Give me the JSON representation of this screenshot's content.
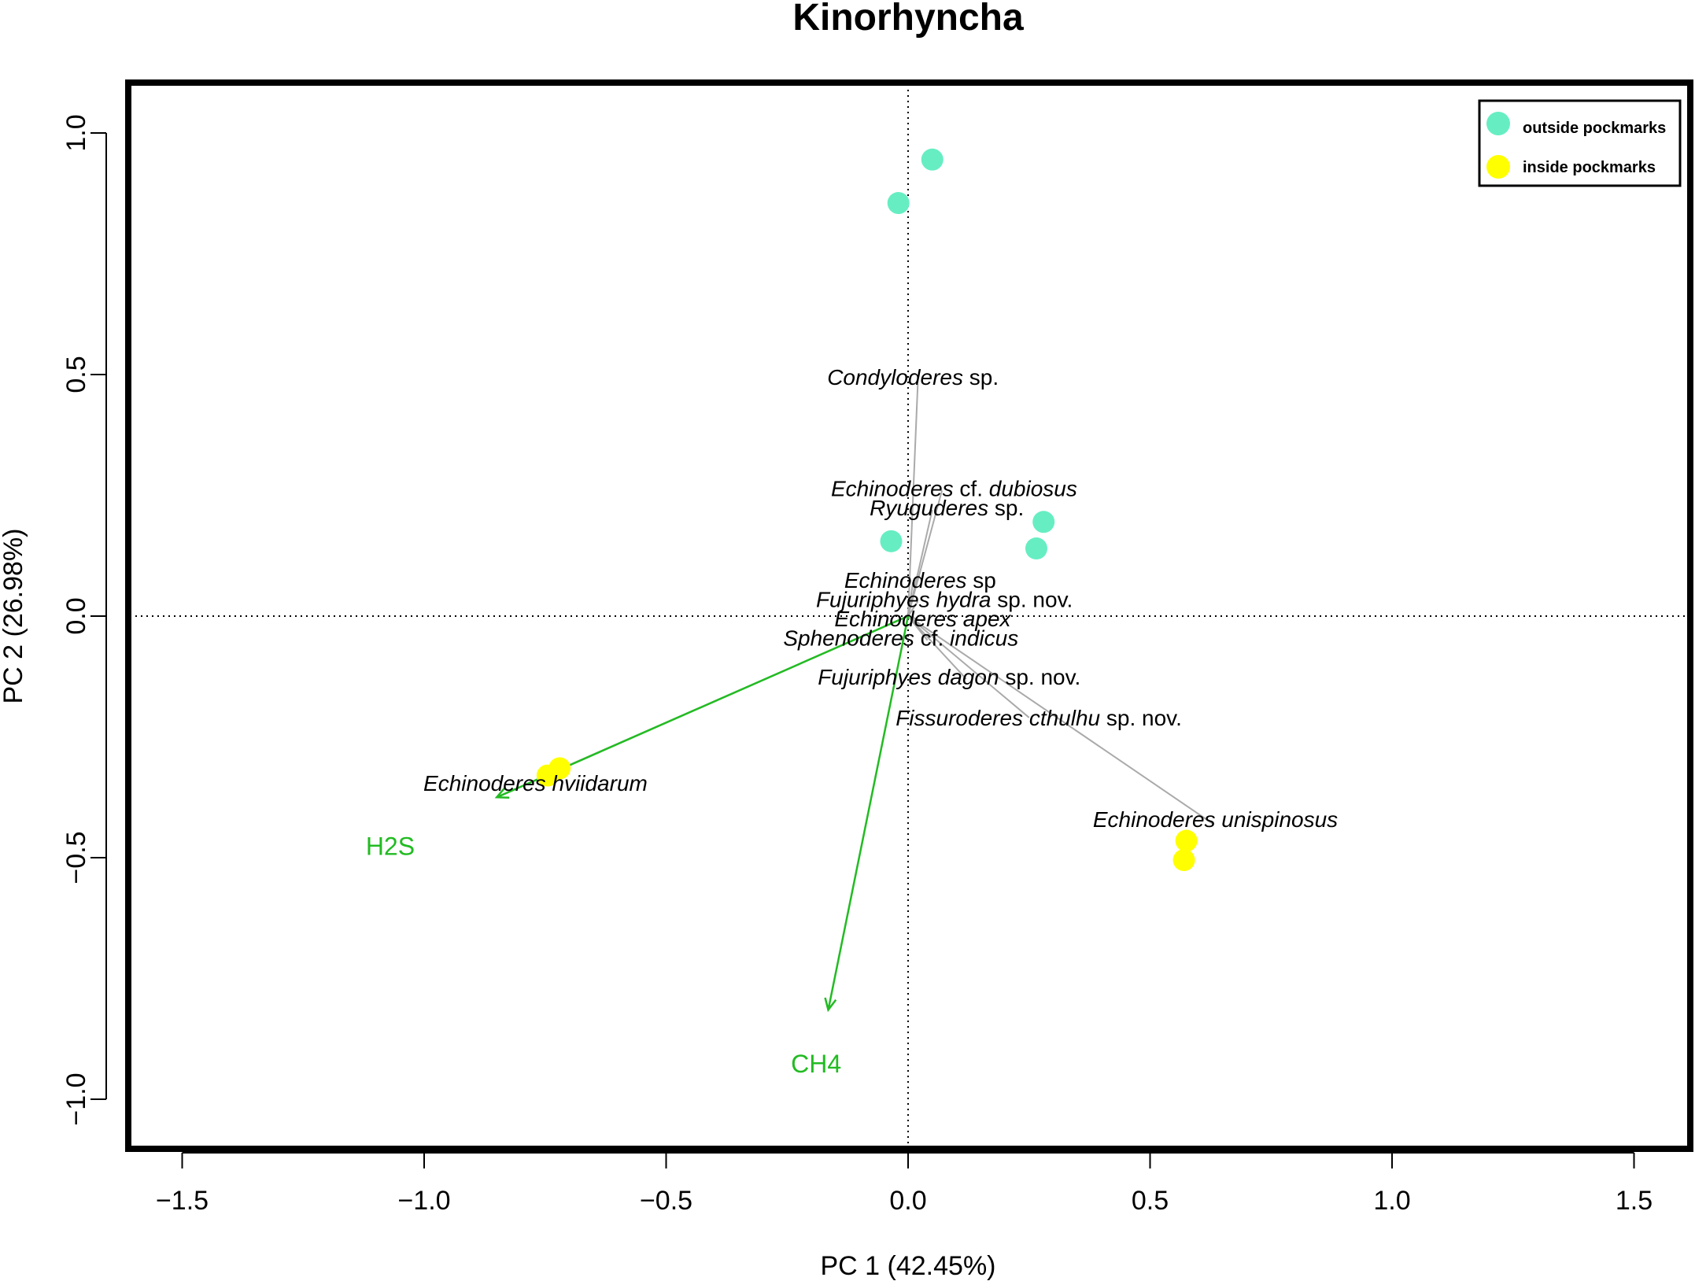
{
  "chart_data": {
    "type": "scatter",
    "title": "Kinorhyncha",
    "xlabel": "PC 1 (42.45%)",
    "ylabel": "PC 2 (26.98%)",
    "xlim": [
      -1.6,
      1.62
    ],
    "ylim": [
      -1.1,
      1.1
    ],
    "xticks": [
      -1.5,
      -1.0,
      -0.5,
      0.0,
      0.5,
      1.0,
      1.5
    ],
    "xtick_labels": [
      "−1.5",
      "−1.0",
      "−0.5",
      "0.0",
      "0.5",
      "1.0",
      "1.5"
    ],
    "yticks": [
      1.0,
      0.5,
      0.0,
      -0.5,
      -1.0
    ],
    "ytick_labels": [
      "1.0",
      "0.5",
      "0.0",
      "−0.5",
      "−1.0"
    ],
    "grid": false,
    "reference_lines": {
      "x": 0,
      "y": 0,
      "style": "dotted"
    },
    "legend": {
      "position": "top-right",
      "entries": [
        {
          "label": "outside pockmarks",
          "color": "#66EEC2"
        },
        {
          "label": "inside pockmarks",
          "color": "#FFFF00"
        }
      ]
    },
    "series": [
      {
        "name": "outside pockmarks",
        "color": "#66EEC2",
        "points": [
          [
            0.05,
            0.945
          ],
          [
            -0.02,
            0.855
          ],
          [
            -0.035,
            0.155
          ],
          [
            0.28,
            0.195
          ],
          [
            0.265,
            0.14
          ]
        ]
      },
      {
        "name": "inside pockmarks",
        "color": "#FFFF00",
        "points": [
          [
            -0.745,
            -0.33
          ],
          [
            -0.72,
            -0.315
          ],
          [
            0.575,
            -0.465
          ],
          [
            0.57,
            -0.505
          ]
        ]
      }
    ],
    "species": [
      {
        "name": "Condyloderes",
        "suffix": " sp.",
        "label_x": 0.01,
        "label_y": 0.495,
        "vector": [
          0.02,
          0.48
        ]
      },
      {
        "name": "Echinoderes",
        "suffix": " cf. ",
        "suffix_italic": "dubiosus",
        "label_x": 0.095,
        "label_y": 0.265,
        "vector": [
          0.07,
          0.26
        ]
      },
      {
        "name": "Ryuguderes",
        "suffix": " sp.",
        "label_x": 0.08,
        "label_y": 0.225,
        "vector": [
          0.05,
          0.22
        ]
      },
      {
        "name": "Echinoderes",
        "suffix": " sp",
        "label_x": 0.025,
        "label_y": 0.075,
        "vector": [
          0.01,
          0.07
        ]
      },
      {
        "name": "Fujuriphyes hydra",
        "suffix": " sp. nov.",
        "label_x": 0.075,
        "label_y": 0.035,
        "vector": [
          0.02,
          0.03
        ]
      },
      {
        "name": "Echinoderes apex",
        "suffix": "",
        "label_x": 0.03,
        "label_y": -0.005,
        "vector": [
          0.03,
          -0.01
        ]
      },
      {
        "name": "Sphenoderes",
        "suffix": " cf. ",
        "suffix_italic": "indicus",
        "label_x": -0.015,
        "label_y": -0.045,
        "vector": [
          0.04,
          -0.05
        ]
      },
      {
        "name": "Fujuriphyes dagon",
        "suffix": " sp. nov.",
        "label_x": 0.085,
        "label_y": -0.125,
        "vector": [
          0.12,
          -0.13
        ]
      },
      {
        "name": "Fissuroderes cthulhu",
        "suffix": " sp. nov.",
        "label_x": 0.27,
        "label_y": -0.21,
        "vector": [
          0.25,
          -0.21
        ]
      },
      {
        "name": "Echinoderes unispinosus",
        "suffix": "",
        "label_x": 0.635,
        "label_y": -0.42,
        "vector": [
          0.63,
          -0.43
        ]
      },
      {
        "name": "Echinoderes hviidarum",
        "suffix": "",
        "label_x": -0.77,
        "label_y": -0.345,
        "vector": [
          -0.75,
          -0.33
        ]
      }
    ],
    "environmental_vectors": [
      {
        "name": "H2S",
        "color": "#22BB22",
        "x": -0.85,
        "y": -0.375,
        "label_x": -1.07,
        "label_y": -0.475
      },
      {
        "name": "CH4",
        "color": "#22BB22",
        "x": -0.165,
        "y": -0.815,
        "label_x": -0.19,
        "label_y": -0.925
      }
    ]
  }
}
